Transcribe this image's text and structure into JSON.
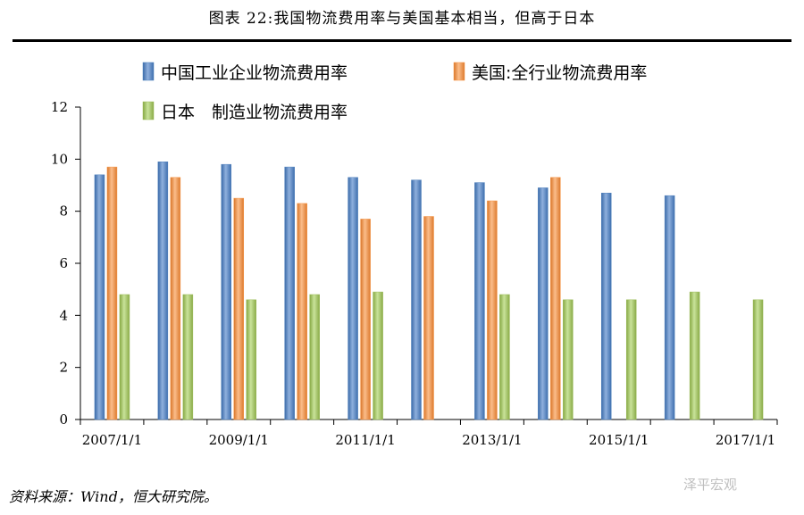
{
  "header": {
    "title": "图表 22:我国物流费用率与美国基本相当，但高于日本"
  },
  "footer": {
    "source": "资料来源：Wind，恒大研究院。",
    "watermark": "泽平宏观"
  },
  "chart_data": {
    "type": "bar",
    "categories": [
      "2007/1/1",
      "2008/1/1",
      "2009/1/1",
      "2010/1/1",
      "2011/1/1",
      "2012/1/1",
      "2013/1/1",
      "2014/1/1",
      "2015/1/1",
      "2016/1/1",
      "2017/1/1"
    ],
    "x_tick_labels": [
      "2007/1/1",
      "2009/1/1",
      "2011/1/1",
      "2013/1/1",
      "2015/1/1",
      "2017/1/1"
    ],
    "ylim": [
      0,
      12
    ],
    "yticks": [
      0,
      2,
      4,
      6,
      8,
      10,
      12
    ],
    "grid": false,
    "legend_position": "top",
    "series": [
      {
        "name": "中国工业企业物流费用率",
        "color": "#4f81bd",
        "values": [
          9.4,
          9.9,
          9.8,
          9.7,
          9.3,
          9.2,
          9.1,
          8.9,
          8.7,
          8.6,
          null
        ]
      },
      {
        "name": "美国:全行业物流费用率",
        "color": "#f79646",
        "values": [
          9.7,
          9.3,
          8.5,
          8.3,
          7.7,
          7.8,
          8.4,
          9.3,
          null,
          null,
          null
        ]
      },
      {
        "name": "日本　制造业物流费用率",
        "color": "#9bbb59",
        "values": [
          4.8,
          4.8,
          4.6,
          4.8,
          4.9,
          null,
          4.8,
          4.6,
          4.6,
          4.9,
          4.6
        ]
      }
    ]
  }
}
